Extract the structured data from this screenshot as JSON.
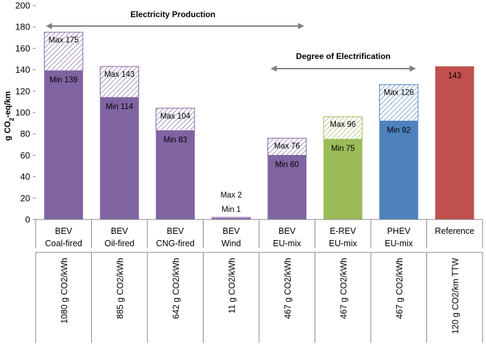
{
  "chart_data": {
    "type": "bar",
    "stacked": true,
    "ylabel": "g CO",
    "ylabel_sub": "2",
    "ylabel_suffix": "-eq/km",
    "ylim": [
      0,
      200
    ],
    "yticks": [
      "0",
      "20",
      "40",
      "60",
      "80",
      "100",
      "120",
      "140",
      "160",
      "180",
      "200"
    ],
    "categories": [
      {
        "line1": "BEV",
        "line2": "Coal-fired",
        "sub": "1080 g CO2/kWh",
        "min": 139,
        "max": 175,
        "min_label": "Min 139",
        "max_label": "Max 175",
        "color": "#8064a2",
        "hatch": "#8064a2"
      },
      {
        "line1": "BEV",
        "line2": "Oil-fired",
        "sub": "885 g CO2/kWh",
        "min": 114,
        "max": 143,
        "min_label": "Min 114",
        "max_label": "Max 143",
        "color": "#8064a2",
        "hatch": "#8064a2"
      },
      {
        "line1": "BEV",
        "line2": "CNG-fired",
        "sub": "642 g CO2/kWh",
        "min": 83,
        "max": 104,
        "min_label": "Min 83",
        "max_label": "Max 104",
        "color": "#8064a2",
        "hatch": "#8064a2"
      },
      {
        "line1": "BEV",
        "line2": "Wind",
        "sub": "11 g CO2/kWh",
        "min": 1,
        "max": 2,
        "min_label": "Min 1",
        "max_label": "Max 2",
        "color": "#8064a2",
        "hatch": "#8064a2"
      },
      {
        "line1": "BEV",
        "line2": "EU-mix",
        "sub": "467 g CO2/kWh",
        "min": 60,
        "max": 76,
        "min_label": "Min 60",
        "max_label": "Max 76",
        "color": "#8064a2",
        "hatch": "#8064a2"
      },
      {
        "line1": "E-REV",
        "line2": "EU-mix",
        "sub": "467 g CO2/kWh",
        "min": 75,
        "max": 96,
        "min_label": "Min 75",
        "max_label": "Max 96",
        "color": "#9bbb59",
        "hatch": "#9bbb59"
      },
      {
        "line1": "PHEV",
        "line2": "EU-mix",
        "sub": "467 g CO2/kWh",
        "min": 92,
        "max": 126,
        "min_label": "Min 92",
        "max_label": "Max 126",
        "color": "#4f81bd",
        "hatch": "#4f81bd"
      },
      {
        "line1": "Reference",
        "line2": "",
        "sub": "120 g CO2/km TTW",
        "min": 143,
        "max": 143,
        "min_label": "",
        "max_label": "143",
        "color": "#c0504d",
        "hatch": "#c0504d"
      }
    ],
    "annotations": [
      {
        "text": "Electricity Production",
        "from_category": 0,
        "to_category": 4
      },
      {
        "text": "Degree of Electrification",
        "from_category": 4,
        "to_category": 6
      }
    ]
  }
}
